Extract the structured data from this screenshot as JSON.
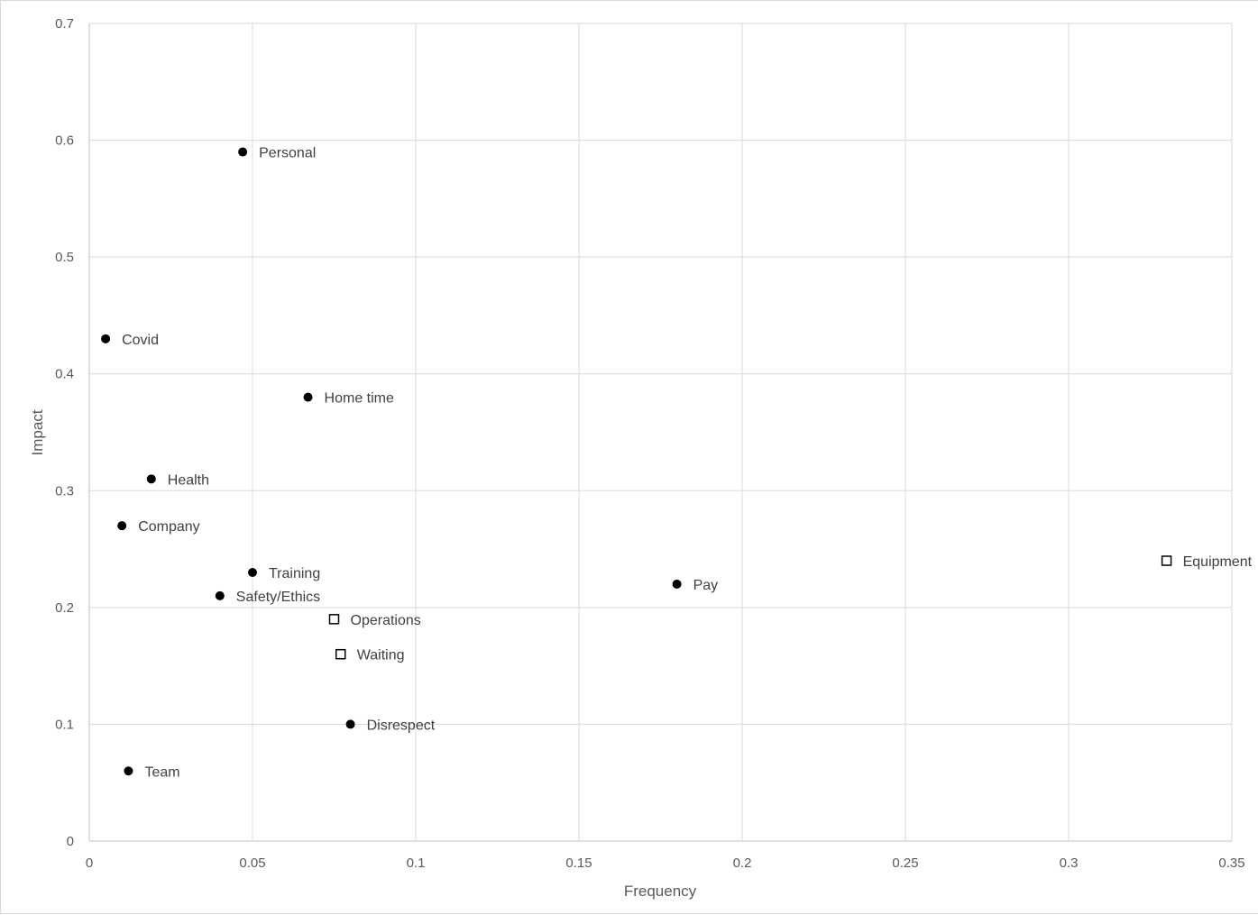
{
  "chart_data": {
    "type": "scatter",
    "title": "",
    "xlabel": "Frequency",
    "ylabel": "Impact",
    "xlim": [
      0,
      0.35
    ],
    "ylim": [
      0,
      0.7
    ],
    "xticks": [
      "0",
      "0.05",
      "0.1",
      "0.15",
      "0.2",
      "0.25",
      "0.3",
      "0.35"
    ],
    "yticks": [
      "0",
      "0.1",
      "0.2",
      "0.3",
      "0.4",
      "0.5",
      "0.6",
      "0.7"
    ],
    "grid": true,
    "legend": "none",
    "series": [
      {
        "marker": "filled-circle",
        "color": "#000000",
        "points": [
          {
            "label": "Personal",
            "x": 0.047,
            "y": 0.59
          },
          {
            "label": "Covid",
            "x": 0.005,
            "y": 0.43
          },
          {
            "label": "Home time",
            "x": 0.067,
            "y": 0.38
          },
          {
            "label": "Health",
            "x": 0.019,
            "y": 0.31
          },
          {
            "label": "Company",
            "x": 0.01,
            "y": 0.27
          },
          {
            "label": "Training",
            "x": 0.05,
            "y": 0.23
          },
          {
            "label": "Safety/Ethics",
            "x": 0.04,
            "y": 0.21
          },
          {
            "label": "Pay",
            "x": 0.18,
            "y": 0.22
          },
          {
            "label": "Disrespect",
            "x": 0.08,
            "y": 0.1
          },
          {
            "label": "Team",
            "x": 0.012,
            "y": 0.06
          }
        ]
      },
      {
        "marker": "hollow-square",
        "color": "#000000",
        "points": [
          {
            "label": "Equipment",
            "x": 0.33,
            "y": 0.24
          },
          {
            "label": "Operations",
            "x": 0.075,
            "y": 0.19
          },
          {
            "label": "Waiting",
            "x": 0.077,
            "y": 0.16
          }
        ]
      }
    ]
  }
}
